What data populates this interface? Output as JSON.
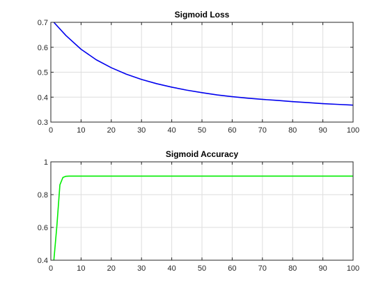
{
  "chart_data": [
    {
      "type": "line",
      "title": "Sigmoid Loss",
      "xlabel": "",
      "ylabel": "",
      "xlim": [
        0,
        100
      ],
      "ylim": [
        0.3,
        0.7
      ],
      "xticks": [
        0,
        10,
        20,
        30,
        40,
        50,
        60,
        70,
        80,
        90,
        100
      ],
      "yticks": [
        0.3,
        0.4,
        0.5,
        0.6,
        0.7
      ],
      "xtick_labels": [
        "0",
        "10",
        "20",
        "30",
        "40",
        "50",
        "60",
        "70",
        "80",
        "90",
        "100"
      ],
      "ytick_labels": [
        "0.3",
        "0.4",
        "0.5",
        "0.6",
        "0.7"
      ],
      "grid": true,
      "series": [
        {
          "color": "#0000ee",
          "x": [
            1,
            5,
            10,
            15,
            20,
            25,
            30,
            35,
            40,
            45,
            50,
            55,
            60,
            65,
            70,
            75,
            80,
            85,
            90,
            95,
            100
          ],
          "y": [
            0.7,
            0.647,
            0.592,
            0.55,
            0.518,
            0.492,
            0.471,
            0.454,
            0.44,
            0.428,
            0.418,
            0.409,
            0.402,
            0.396,
            0.391,
            0.387,
            0.382,
            0.378,
            0.374,
            0.371,
            0.368
          ]
        }
      ]
    },
    {
      "type": "line",
      "title": "Sigmoid Accuracy",
      "xlabel": "",
      "ylabel": "",
      "xlim": [
        0,
        100
      ],
      "ylim": [
        0.4,
        1
      ],
      "xticks": [
        0,
        10,
        20,
        30,
        40,
        50,
        60,
        70,
        80,
        90,
        100
      ],
      "yticks": [
        0.4,
        0.6,
        0.8,
        1
      ],
      "xtick_labels": [
        "0",
        "10",
        "20",
        "30",
        "40",
        "50",
        "60",
        "70",
        "80",
        "90",
        "100"
      ],
      "ytick_labels": [
        "0.4",
        "0.6",
        "0.8",
        "1"
      ],
      "grid": true,
      "series": [
        {
          "color": "#00ee00",
          "x": [
            1,
            2,
            3,
            4,
            5,
            6,
            10,
            20,
            30,
            40,
            50,
            60,
            70,
            80,
            90,
            100
          ],
          "y": [
            0.4,
            0.61,
            0.86,
            0.905,
            0.912,
            0.913,
            0.913,
            0.913,
            0.913,
            0.913,
            0.913,
            0.913,
            0.913,
            0.913,
            0.913,
            0.913
          ]
        }
      ]
    }
  ]
}
